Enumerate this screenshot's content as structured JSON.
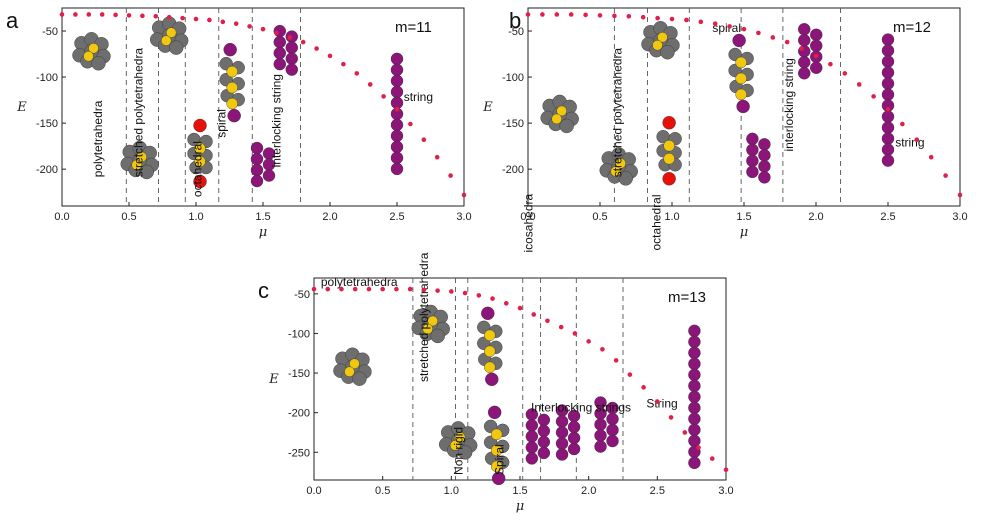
{
  "chart_data": [
    {
      "type": "scatter",
      "panel": "a",
      "title": "m=11",
      "xlabel": "μ",
      "ylabel": "E",
      "xlim": [
        0,
        3.0
      ],
      "ylim": [
        -240,
        -25
      ],
      "xticks": [
        "0.0",
        "0.5",
        "1.0",
        "1.5",
        "2.0",
        "2.5",
        "3.0"
      ],
      "yticks": [
        "-50",
        "-100",
        "-150",
        "-200"
      ],
      "series": [
        {
          "name": "energy",
          "x": [
            0.0,
            0.1,
            0.2,
            0.3,
            0.4,
            0.5,
            0.6,
            0.7,
            0.8,
            0.9,
            1.0,
            1.1,
            1.2,
            1.3,
            1.4,
            1.5,
            1.6,
            1.7,
            1.8,
            1.9,
            2.0,
            2.1,
            2.2,
            2.3,
            2.4,
            2.5,
            2.6,
            2.7,
            2.8,
            2.9,
            3.0
          ],
          "y": [
            -32,
            -32,
            -32,
            -32,
            -32.5,
            -33,
            -33.5,
            -34,
            -35,
            -36,
            -37,
            -38,
            -40,
            -42,
            -45,
            -48,
            -52,
            -57,
            -62,
            -69,
            -77,
            -86,
            -96,
            -108,
            -121,
            -135,
            -151,
            -168,
            -187,
            -207,
            -228
          ]
        }
      ],
      "boundaries": [
        0.48,
        0.72,
        0.92,
        1.17,
        1.42,
        1.78
      ],
      "regions": [
        "polytetrahedra",
        "stretched polytetrahedra",
        "octahedral",
        "spiral",
        "interlocking string",
        "string"
      ]
    },
    {
      "type": "scatter",
      "panel": "b",
      "title": "m=12",
      "xlabel": "μ",
      "ylabel": "E",
      "xlim": [
        0,
        3.0
      ],
      "ylim": [
        -240,
        -25
      ],
      "xticks": [
        "0.0",
        "0.5",
        "1.0",
        "1.5",
        "2.0",
        "2.5",
        "3.0"
      ],
      "yticks": [
        "-50",
        "-100",
        "-150",
        "-200"
      ],
      "series": [
        {
          "name": "energy",
          "x": [
            0.0,
            0.1,
            0.2,
            0.3,
            0.4,
            0.5,
            0.6,
            0.7,
            0.8,
            0.9,
            1.0,
            1.1,
            1.2,
            1.3,
            1.4,
            1.5,
            1.6,
            1.7,
            1.8,
            1.9,
            2.0,
            2.1,
            2.2,
            2.3,
            2.4,
            2.5,
            2.6,
            2.7,
            2.8,
            2.9,
            3.0
          ],
          "y": [
            -32,
            -32,
            -32,
            -32,
            -32.5,
            -33,
            -33.5,
            -34,
            -35,
            -36,
            -37,
            -38,
            -40,
            -42,
            -45,
            -48,
            -52,
            -57,
            -62,
            -69,
            -77,
            -86,
            -96,
            -108,
            -121,
            -135,
            -151,
            -168,
            -187,
            -207,
            -228
          ]
        }
      ],
      "boundaries": [
        0.6,
        0.83,
        1.12,
        1.48,
        1.77,
        2.17
      ],
      "regions": [
        "icosahedra",
        "stretched polytetrahedra",
        "octahedral",
        "spiral",
        "interlocking string",
        "string"
      ]
    },
    {
      "type": "scatter",
      "panel": "c",
      "title": "m=13",
      "xlabel": "μ",
      "ylabel": "E",
      "xlim": [
        0,
        3.0
      ],
      "ylim": [
        -285,
        -30
      ],
      "xticks": [
        "0.0",
        "0.5",
        "1.0",
        "1.5",
        "2.0",
        "2.5",
        "3.0"
      ],
      "yticks": [
        "-50",
        "-100",
        "-150",
        "-200",
        "-250"
      ],
      "series": [
        {
          "name": "energy",
          "x": [
            0.0,
            0.1,
            0.2,
            0.3,
            0.4,
            0.5,
            0.6,
            0.7,
            0.8,
            0.9,
            1.0,
            1.1,
            1.2,
            1.3,
            1.4,
            1.5,
            1.6,
            1.7,
            1.8,
            1.9,
            2.0,
            2.1,
            2.2,
            2.3,
            2.4,
            2.5,
            2.6,
            2.7,
            2.8,
            2.9,
            3.0
          ],
          "y": [
            -44,
            -44,
            -44,
            -44,
            -44,
            -44,
            -44,
            -44,
            -45,
            -46,
            -47,
            -49,
            -52,
            -56,
            -62,
            -68,
            -76,
            -84,
            -92,
            -100,
            -110,
            -120,
            -134,
            -152,
            -168,
            -186,
            -206,
            -225,
            -244,
            -258,
            -272
          ]
        }
      ],
      "boundaries": [
        0.72,
        1.03,
        1.12,
        1.52,
        1.65,
        1.91,
        2.25
      ],
      "regions": [
        "polytetrahedra",
        "stretched polytetrahedra",
        "Non rigid",
        "Spiral",
        "Interlocking strings",
        "String"
      ]
    }
  ]
}
